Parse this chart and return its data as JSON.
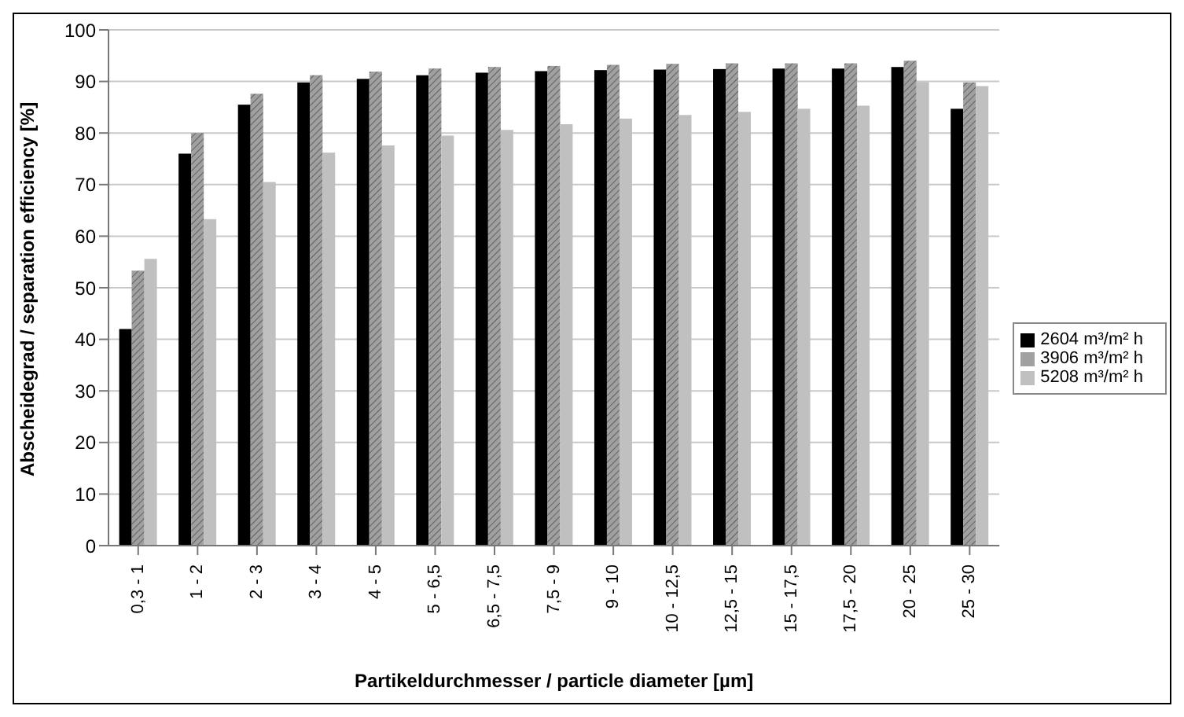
{
  "chart_data": {
    "type": "bar",
    "xlabel": "Partikeldurchmesser / particle diameter [µm]",
    "ylabel": "Abscheidegrad / separation efficiency [%]",
    "categories": [
      "0,3 - 1",
      "1 - 2",
      "2 - 3",
      "3 - 4",
      "4 - 5",
      "5 - 6,5",
      "6,5 - 7,5",
      "7,5 - 9",
      "9 - 10",
      "10 - 12,5",
      "12,5 - 15",
      "15 - 17,5",
      "17,5 - 20",
      "20 - 25",
      "25 - 30"
    ],
    "series": [
      {
        "name": "2604 m³/m² h",
        "color": "#000000",
        "values": [
          42,
          76,
          85.5,
          89.8,
          90.5,
          91.2,
          91.7,
          92,
          92.2,
          92.3,
          92.4,
          92.5,
          92.5,
          92.8,
          84.7
        ]
      },
      {
        "name": "3906 m³/m² h",
        "color": "#a0a0a0",
        "values": [
          53.3,
          80,
          87.6,
          91.2,
          91.9,
          92.5,
          92.8,
          93,
          93.2,
          93.4,
          93.5,
          93.5,
          93.5,
          94,
          89.8
        ]
      },
      {
        "name": "5208 m³/m² h",
        "color": "#c0c0c0",
        "values": [
          55.6,
          63.3,
          70.5,
          76.2,
          77.6,
          79.5,
          80.6,
          81.7,
          82.8,
          83.5,
          84.1,
          84.7,
          85.3,
          89.9,
          89.1
        ]
      }
    ],
    "ylim": [
      0,
      100
    ],
    "yticks": [
      0,
      10,
      20,
      30,
      40,
      50,
      60,
      70,
      80,
      90,
      100
    ],
    "grid": "y",
    "legend": "right"
  }
}
